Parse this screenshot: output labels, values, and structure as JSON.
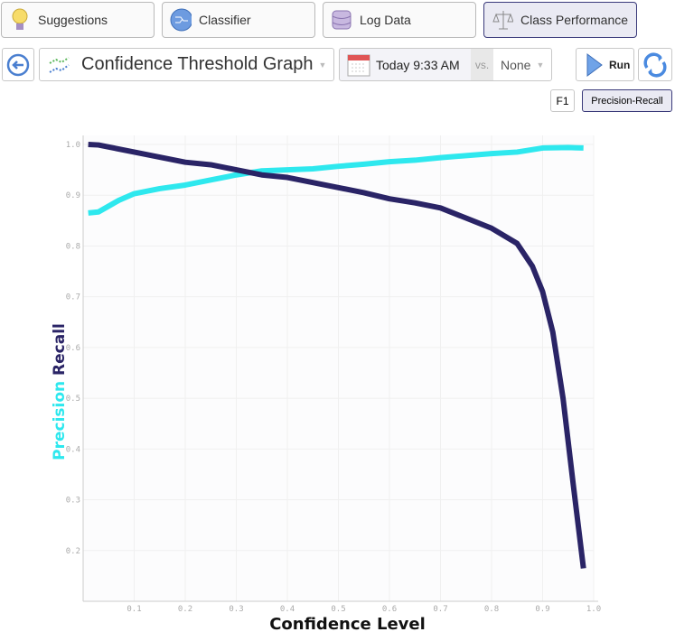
{
  "tabs": [
    {
      "label": "Suggestions",
      "icon": "lightbulb-icon"
    },
    {
      "label": "Classifier",
      "icon": "network-icon"
    },
    {
      "label": "Log Data",
      "icon": "database-icon"
    },
    {
      "label": "Class Performance",
      "icon": "scales-icon",
      "active": true
    }
  ],
  "toolbar": {
    "graph_select": "Confidence Threshold Graph",
    "date": "Today 9:33 AM",
    "vs": "vs.",
    "compare": "None",
    "run": "Run"
  },
  "modes": {
    "f1": "F1",
    "pr": "Precision-Recall",
    "active": "Precision-Recall"
  },
  "chart_data": {
    "type": "line",
    "xlabel": "Confidence Level",
    "ylabel_parts": [
      "Precision",
      "Recall"
    ],
    "xlim": [
      0,
      1.0
    ],
    "ylim": [
      0.1,
      1.0
    ],
    "xticks": [
      "0.1",
      "0.2",
      "0.3",
      "0.4",
      "0.5",
      "0.6",
      "0.7",
      "0.8",
      "0.9",
      "1.0"
    ],
    "yticks": [
      "1.0",
      "0.9",
      "0.8",
      "0.7",
      "0.6",
      "0.5",
      "0.4",
      "0.3",
      "0.2"
    ],
    "grid": true,
    "series": [
      {
        "name": "Precision",
        "color": "#2ee8ee",
        "x": [
          0.01,
          0.03,
          0.07,
          0.1,
          0.15,
          0.2,
          0.25,
          0.3,
          0.35,
          0.4,
          0.45,
          0.5,
          0.55,
          0.6,
          0.65,
          0.7,
          0.75,
          0.8,
          0.85,
          0.9,
          0.95,
          0.98
        ],
        "y": [
          0.865,
          0.867,
          0.89,
          0.903,
          0.913,
          0.92,
          0.93,
          0.94,
          0.948,
          0.95,
          0.952,
          0.957,
          0.961,
          0.966,
          0.969,
          0.974,
          0.978,
          0.982,
          0.985,
          0.993,
          0.994,
          0.993
        ]
      },
      {
        "name": "Recall",
        "color": "#2a2466",
        "x": [
          0.01,
          0.03,
          0.05,
          0.1,
          0.15,
          0.2,
          0.25,
          0.3,
          0.35,
          0.4,
          0.45,
          0.5,
          0.55,
          0.6,
          0.65,
          0.7,
          0.75,
          0.8,
          0.85,
          0.88,
          0.9,
          0.92,
          0.94,
          0.96,
          0.98
        ],
        "y": [
          1.0,
          0.999,
          0.995,
          0.985,
          0.975,
          0.965,
          0.96,
          0.95,
          0.94,
          0.935,
          0.925,
          0.915,
          0.905,
          0.893,
          0.885,
          0.875,
          0.855,
          0.835,
          0.805,
          0.76,
          0.71,
          0.63,
          0.5,
          0.33,
          0.165
        ]
      }
    ]
  }
}
